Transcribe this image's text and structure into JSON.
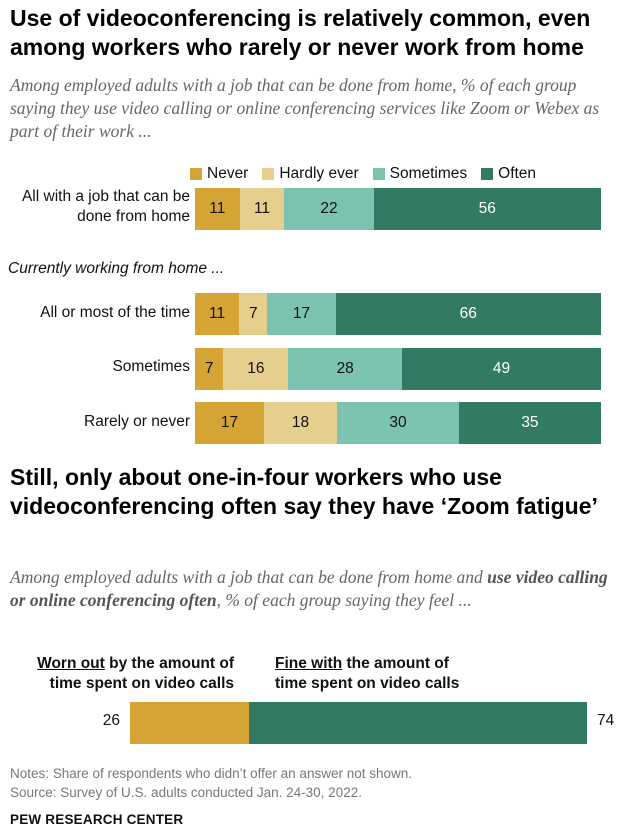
{
  "chart1": {
    "title": "Use of videoconferencing is relatively common, even among workers who rarely or never work from home",
    "subtitle": "Among employed adults with a job that can be done from home, % of each group saying they use video calling or online conferencing services like Zoom or Webex as part of their work ...",
    "legend": [
      "Never",
      "Hardly ever",
      "Sometimes",
      "Often"
    ],
    "colors": [
      "#d4a535",
      "#e6cf8c",
      "#7cc2b0",
      "#337a65"
    ],
    "section_label": "Currently working from home ...",
    "rows": [
      {
        "label": "All with a job that can be done from home",
        "values": [
          11,
          11,
          22,
          56
        ]
      },
      {
        "label": "All or most of the time",
        "values": [
          11,
          7,
          17,
          66
        ]
      },
      {
        "label": "Sometimes",
        "values": [
          7,
          16,
          28,
          49
        ]
      },
      {
        "label": "Rarely or never",
        "values": [
          17,
          18,
          30,
          35
        ]
      }
    ]
  },
  "chart2": {
    "title": "Still, only about one-in-four workers who use videoconferencing often say they have ‘Zoom fatigue’",
    "subtitle_pre": "Among employed adults with a job that can be done from home and ",
    "subtitle_bold": "use video calling or online conferencing often",
    "subtitle_post": ", % of each group saying they feel ...",
    "left_label_u": "Worn out",
    "left_label_rest": " by the amount of",
    "left_label_line2": "time spent on video calls",
    "right_label_u": "Fine with",
    "right_label_rest": " the amount of",
    "right_label_line2": "time spent on video calls",
    "values": [
      26,
      74
    ],
    "value_labels": [
      "26",
      "74"
    ],
    "colors": [
      "#d4a535",
      "#337a65"
    ]
  },
  "chart_data": [
    {
      "type": "bar",
      "orientation": "horizontal-stacked",
      "title": "Use of videoconferencing is relatively common, even among workers who rarely or never work from home",
      "categories": [
        "All with a job that can be done from home",
        "All or most of the time",
        "Sometimes",
        "Rarely or never"
      ],
      "series": [
        {
          "name": "Never",
          "values": [
            11,
            11,
            7,
            17
          ]
        },
        {
          "name": "Hardly ever",
          "values": [
            11,
            7,
            16,
            18
          ]
        },
        {
          "name": "Sometimes",
          "values": [
            22,
            17,
            28,
            30
          ]
        },
        {
          "name": "Often",
          "values": [
            56,
            66,
            49,
            35
          ]
        }
      ],
      "legend": "top"
    },
    {
      "type": "bar",
      "orientation": "horizontal-stacked",
      "title": "Still, only about one-in-four workers who use videoconferencing often say they have ‘Zoom fatigue’",
      "categories": [
        ""
      ],
      "series": [
        {
          "name": "Worn out by the amount of time spent on video calls",
          "values": [
            26
          ]
        },
        {
          "name": "Fine with the amount of time spent on video calls",
          "values": [
            74
          ]
        }
      ]
    }
  ],
  "notes": {
    "line1": "Notes: Share of respondents who didn’t offer an answer not shown.",
    "line2": "Source: Survey of U.S. adults conducted Jan. 24-30, 2022."
  },
  "brand": "PEW RESEARCH CENTER"
}
